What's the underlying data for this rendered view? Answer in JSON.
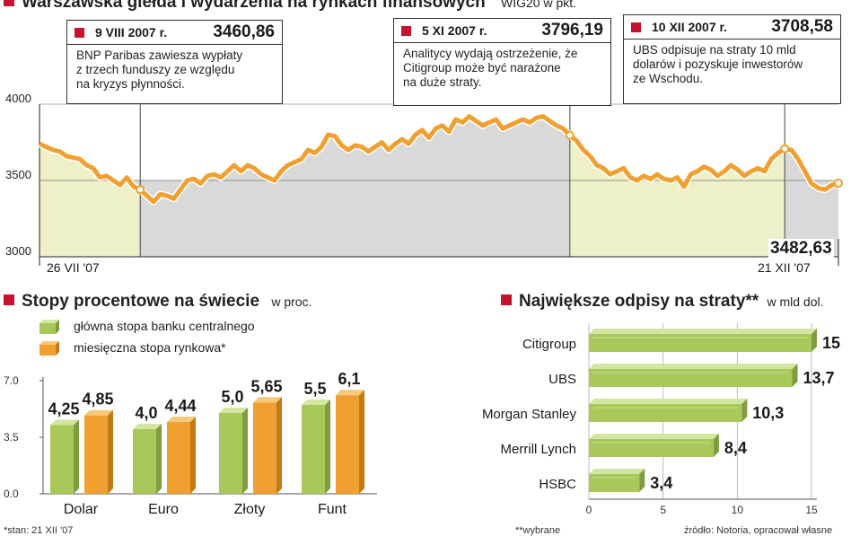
{
  "top": {
    "title": "Warszawska giełda i wydarzenia na rynkach finansowych",
    "unit": "WIG20 w pkt.",
    "annotations": [
      {
        "date": "9 VIII 2007 r.",
        "value": "3460,86",
        "lines": [
          "BNP Paribas zawiesza wypłaty",
          "z trzech funduszy ze względu",
          "na kryzys płynności."
        ]
      },
      {
        "date": "5 XI 2007 r.",
        "value": "3796,19",
        "lines": [
          "Analitycy wydają ostrzeżenie, że",
          "Citigroup może być narażone",
          "na duże straty."
        ]
      },
      {
        "date": "10 XII 2007 r.",
        "value": "3708,58",
        "lines": [
          "UBS odpisuje na straty 10 mld",
          "dolarów i pozyskuje inwestorów",
          "ze Wschodu."
        ]
      }
    ],
    "end_value_label": "3482,63",
    "x_labels": [
      "26 VII '07",
      "21 XII '07"
    ]
  },
  "rates": {
    "title": "Stopy procentowe na świecie",
    "unit": "w proc.",
    "legend": [
      "główna stopa banku centralnego",
      "miesięczna stopa rynkowa*"
    ],
    "footnote": "*stan: 21 XII '07"
  },
  "writeoffs": {
    "title": "Największe odpisy na straty**",
    "unit": "w mld dol.",
    "footnote_left": "**wybrane",
    "footnote_right": "źródło: Notoria, opracował własne"
  },
  "colors": {
    "orange": "#f0a030",
    "green": "#a8c85a",
    "red": "#c4122f",
    "shade": "#d9d9d9",
    "cream": "#f0f0c8"
  },
  "chart_data": [
    {
      "type": "line",
      "title": "Warszawska giełda i wydarzenia na rynkach finansowych",
      "ylabel": "WIG20 w pkt.",
      "ylim": [
        3000,
        4000
      ],
      "yticks": [
        3000,
        3500,
        4000
      ],
      "grid": false,
      "x_start": "26 VII '07",
      "x_end": "21 XII '07",
      "series": [
        {
          "values": [
            3740,
            3720,
            3700,
            3690,
            3660,
            3650,
            3640,
            3600,
            3580,
            3520,
            3530,
            3500,
            3470,
            3520,
            3460,
            3440,
            3400,
            3360,
            3410,
            3400,
            3380,
            3440,
            3500,
            3510,
            3480,
            3530,
            3540,
            3520,
            3560,
            3600,
            3560,
            3600,
            3580,
            3540,
            3520,
            3500,
            3560,
            3600,
            3620,
            3640,
            3700,
            3680,
            3720,
            3800,
            3790,
            3730,
            3700,
            3730,
            3720,
            3690,
            3720,
            3750,
            3700,
            3740,
            3770,
            3740,
            3800,
            3830,
            3780,
            3840,
            3860,
            3820,
            3900,
            3880,
            3920,
            3890,
            3860,
            3880,
            3900,
            3840,
            3860,
            3880,
            3900,
            3880,
            3910,
            3920,
            3890,
            3860,
            3840,
            3796,
            3760,
            3700,
            3660,
            3600,
            3580,
            3540,
            3560,
            3580,
            3520,
            3500,
            3530,
            3510,
            3540,
            3510,
            3500,
            3520,
            3460,
            3540,
            3560,
            3590,
            3570,
            3530,
            3560,
            3600,
            3570,
            3530,
            3560,
            3580,
            3560,
            3640,
            3680,
            3708,
            3700,
            3640,
            3560,
            3480,
            3450,
            3440,
            3470,
            3482
          ]
        }
      ],
      "shaded_periods": [
        [
          "26 VII '07",
          "9 VIII 2007 r."
        ],
        [
          "5 XI 2007 r.",
          "10 XII 2007 r."
        ]
      ],
      "annotations": [
        {
          "label": "9 VIII 2007 r.",
          "y": 3460.86
        },
        {
          "label": "5 XI 2007 r.",
          "y": 3796.19
        },
        {
          "label": "10 XII 2007 r.",
          "y": 3708.58
        },
        {
          "label": "21 XII '07",
          "y": 3482.63
        }
      ]
    },
    {
      "type": "bar",
      "title": "Stopy procentowe na świecie",
      "ylabel": "w proc.",
      "categories": [
        "Dolar",
        "Euro",
        "Złoty",
        "Funt"
      ],
      "series": [
        {
          "name": "główna stopa banku centralnego",
          "values": [
            4.25,
            4.0,
            5.0,
            5.5
          ],
          "labels": [
            "4,25",
            "4,0",
            "5,0",
            "5,5"
          ],
          "color": "#a8c85a"
        },
        {
          "name": "miesięczna stopa rynkowa*",
          "values": [
            4.85,
            4.44,
            5.65,
            6.1
          ],
          "labels": [
            "4,85",
            "4,44",
            "5,65",
            "6,1"
          ],
          "color": "#f0a030"
        }
      ],
      "ylim": [
        0,
        7.0
      ],
      "yticks": [
        "0.0",
        "3.5",
        "7.0"
      ],
      "grid": false
    },
    {
      "type": "bar",
      "orientation": "horizontal",
      "title": "Największe odpisy na straty**",
      "xlabel": "w mld dol.",
      "categories": [
        "Citigroup",
        "UBS",
        "Morgan Stanley",
        "Merrill Lynch",
        "HSBC"
      ],
      "values": [
        15,
        13.7,
        10.3,
        8.4,
        3.4
      ],
      "labels": [
        "15",
        "13,7",
        "10,3",
        "8,4",
        "3,4"
      ],
      "xlim": [
        0,
        15
      ],
      "xticks": [
        0,
        5,
        10,
        15
      ],
      "grid": true,
      "color": "#a8c85a"
    }
  ]
}
